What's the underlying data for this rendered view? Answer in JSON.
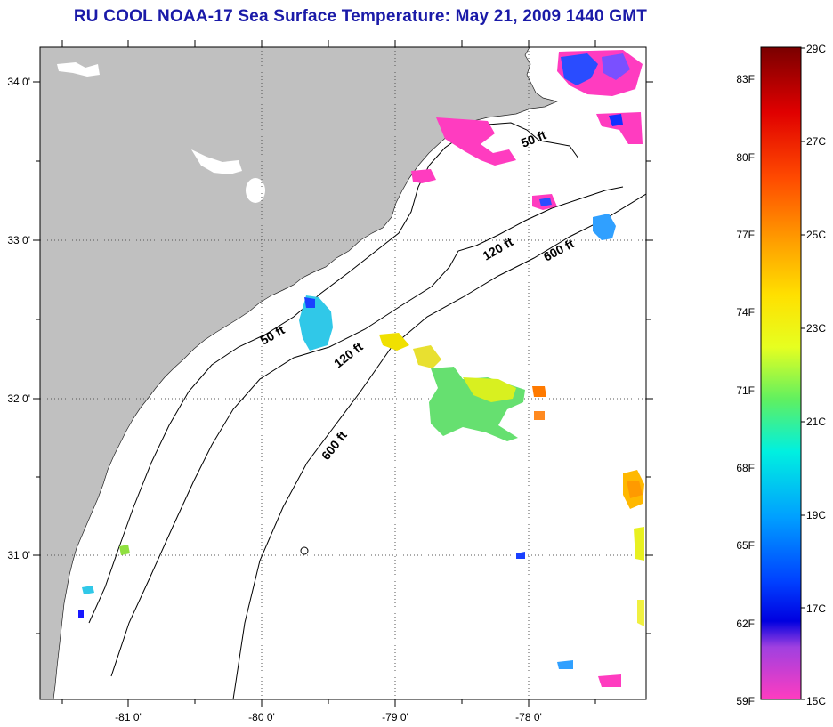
{
  "title": "RU COOL  NOAA-17  Sea Surface Temperature:  May 21, 2009 1440 GMT",
  "map": {
    "lat_labels": [
      "34 0'",
      "33 0'",
      "32 0'",
      "31 0'"
    ],
    "lon_labels": [
      "-81 0'",
      "-80 0'",
      "-79 0'",
      "-78 0'"
    ],
    "contour_labels": {
      "c50_north": "50 ft",
      "c50_south": "50 ft",
      "c120_north": "120 ft",
      "c120_south": "120 ft",
      "c600_north": "600 ft",
      "c600_south": "600 ft"
    },
    "colors": {
      "land": "#c0c0c0",
      "ocean": "#ffffff",
      "contour": "#000000"
    }
  },
  "colorbar": {
    "fahrenheit": [
      "83F",
      "80F",
      "77F",
      "74F",
      "71F",
      "68F",
      "65F",
      "62F",
      "59F"
    ],
    "celsius": [
      "29C",
      "27C",
      "25C",
      "23C",
      "21C",
      "19C",
      "17C",
      "15C"
    ],
    "stops": [
      {
        "offset": 0.0,
        "color": "#7a0000"
      },
      {
        "offset": 0.1,
        "color": "#e00000"
      },
      {
        "offset": 0.2,
        "color": "#ff4a00"
      },
      {
        "offset": 0.3,
        "color": "#ffa000"
      },
      {
        "offset": 0.38,
        "color": "#ffe000"
      },
      {
        "offset": 0.46,
        "color": "#e6ff20"
      },
      {
        "offset": 0.54,
        "color": "#60f060"
      },
      {
        "offset": 0.62,
        "color": "#00f0e0"
      },
      {
        "offset": 0.72,
        "color": "#00a0ff"
      },
      {
        "offset": 0.82,
        "color": "#0040ff"
      },
      {
        "offset": 0.88,
        "color": "#0000e0"
      },
      {
        "offset": 0.92,
        "color": "#a040e0"
      },
      {
        "offset": 1.0,
        "color": "#ff3cc0"
      }
    ]
  }
}
